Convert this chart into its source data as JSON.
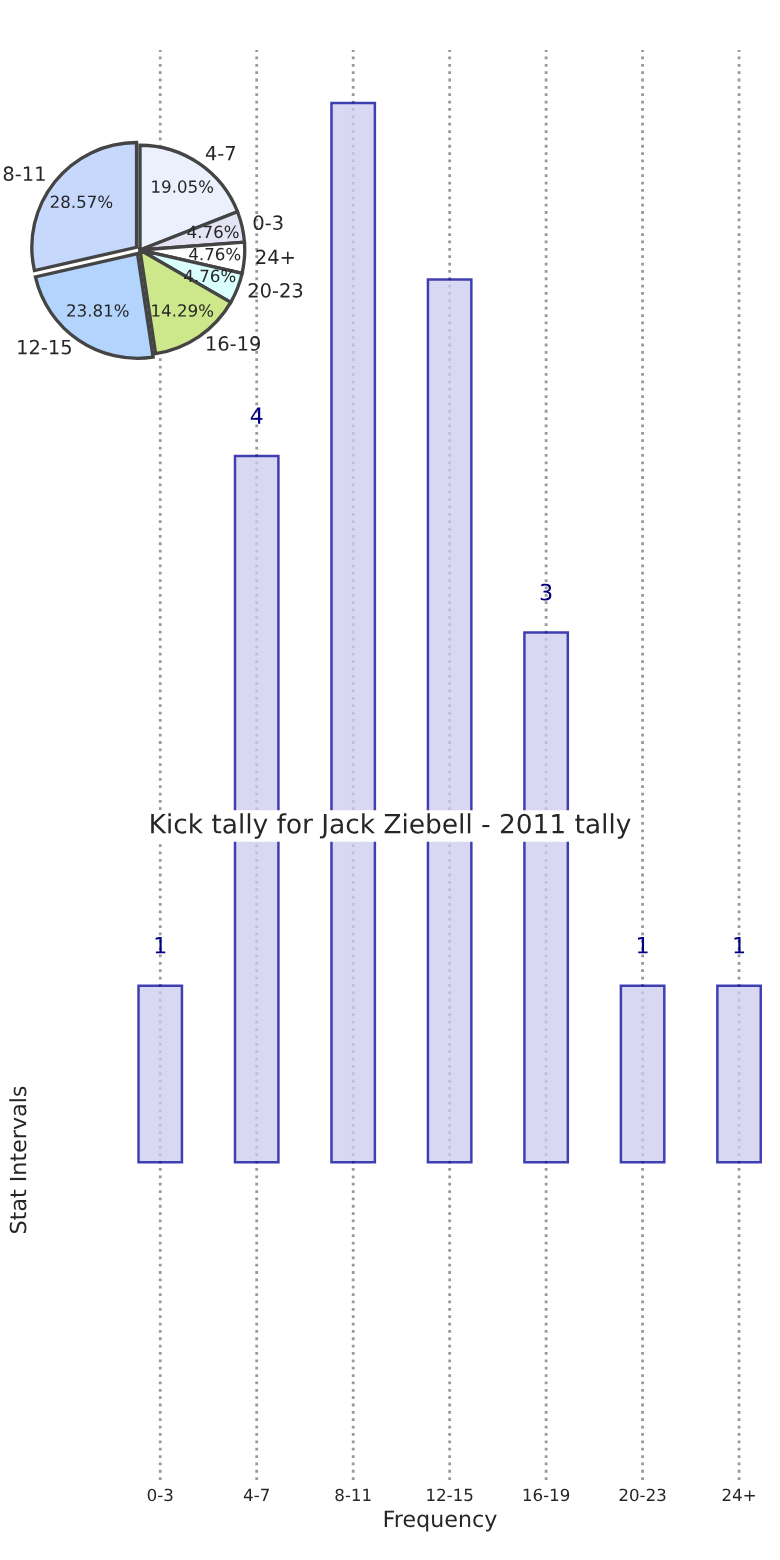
{
  "chart_data": [
    {
      "type": "bar",
      "title": "Kick tally for Jack Ziebell - 2011 tally",
      "xlabel": "Frequency",
      "ylabel": "Stat Intervals",
      "categories": [
        "0-3",
        "4-7",
        "8-11",
        "12-15",
        "16-19",
        "20-23",
        "24+"
      ],
      "values": [
        1,
        4,
        6,
        5,
        3,
        1,
        1
      ],
      "value_labels": [
        "1",
        "4",
        null,
        null,
        "3",
        "1",
        "1"
      ],
      "color": "#ccccee",
      "grid": "x",
      "tick_labels": "x"
    },
    {
      "type": "pie",
      "categories": [
        "4-7",
        "0-3",
        "24+",
        "20-23",
        "16-19",
        "12-15",
        "8-11"
      ],
      "values": [
        19.05,
        4.76,
        4.76,
        4.76,
        14.29,
        23.81,
        28.57
      ],
      "value_labels": [
        "19.05%",
        "4.76%",
        "4.76%",
        "4.76%",
        "14.29%",
        "23.81%",
        "28.57%"
      ],
      "colors": [
        "#eaf1fd",
        "#e4e4f4",
        "#ffffff",
        "#d9ffff",
        "#cde88a",
        "#b3d4fd",
        "#c6d9fd"
      ]
    }
  ]
}
